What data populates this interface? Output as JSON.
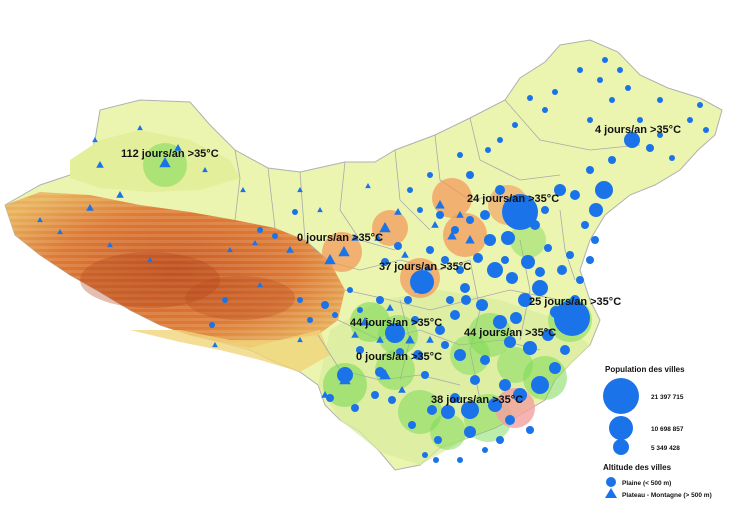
{
  "annotations": [
    {
      "id": "xinjiang",
      "text": "112 jours/an >35°C",
      "zone": "green"
    },
    {
      "id": "northeast",
      "text": "4 jours/an >35°C",
      "zone": "none"
    },
    {
      "id": "beijing",
      "text": "24 jours/an >35°C",
      "zone": "orange"
    },
    {
      "id": "qinghai",
      "text": "0 jours/an >35°C",
      "zone": "orange"
    },
    {
      "id": "gansu",
      "text": "37 jours/an >35°C",
      "zone": "orange"
    },
    {
      "id": "shanghai",
      "text": "25 jours/an >35°C",
      "zone": "green"
    },
    {
      "id": "sichuan",
      "text": "44 jours/an >35°C",
      "zone": "green"
    },
    {
      "id": "wuhan",
      "text": "44 jours/an >35°C",
      "zone": "green"
    },
    {
      "id": "guizhou",
      "text": "0 jours/an >35°C",
      "zone": "green"
    },
    {
      "id": "south",
      "text": "38 jours/an >35°C",
      "zone": "red"
    }
  ],
  "legend": {
    "population_title": "Population des villes",
    "population_values": [
      "21 397 715",
      "10 698 857",
      "5 349 428"
    ],
    "altitude_title": "Altitude des villes",
    "plaine": "Plaine (< 500 m)",
    "plateau": "Plateau - Montagne (> 500 m)"
  },
  "colors": {
    "city": "#1a73e8",
    "zone_green": "#7ed957",
    "zone_orange": "#f29a5c",
    "zone_red": "#f4a0a0",
    "lowland": "#e7f3a0",
    "highland": "#d96b2a"
  }
}
